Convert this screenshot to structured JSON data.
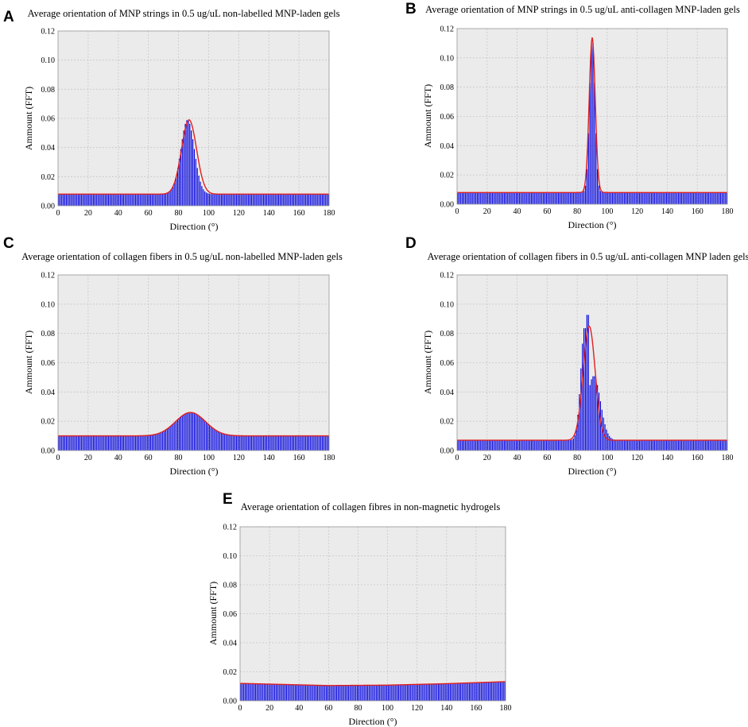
{
  "chart_data": [
    {
      "panel": "A",
      "type": "bar",
      "title": "Average orientation of MNP strings in 0.5 ug/uL non-labelled MNP-laden gels",
      "xlabel": "Direction (°)",
      "ylabel": "Ammount (FFT)",
      "xlim": [
        0,
        180
      ],
      "ylim": [
        0,
        0.12
      ],
      "xticks": [
        "0",
        "20",
        "40",
        "60",
        "80",
        "100",
        "120",
        "140",
        "160",
        "180"
      ],
      "yticks": [
        "0.00",
        "0.02",
        "0.04",
        "0.06",
        "0.08",
        "0.10",
        "0.12"
      ],
      "grid": true,
      "bar_color": "#0000e0",
      "fit_color": "#e02020",
      "bars": {
        "baseline": 0.008,
        "peaks": [
          [
            86,
            0.059,
            4.5
          ]
        ]
      },
      "fit": {
        "type": "gaussian",
        "baseline": 0.008,
        "peak": 0.059,
        "center": 87,
        "sigma": 5
      }
    },
    {
      "panel": "B",
      "type": "bar",
      "title": "Average orientation of MNP strings in 0.5 ug/uL anti-collagen MNP-laden gels",
      "xlabel": "Direction (°)",
      "ylabel": "Ammount (FFT)",
      "xlim": [
        0,
        180
      ],
      "ylim": [
        0,
        0.12
      ],
      "xticks": [
        "0",
        "20",
        "40",
        "60",
        "80",
        "100",
        "120",
        "140",
        "160",
        "180"
      ],
      "yticks": [
        "0.00",
        "0.02",
        "0.04",
        "0.06",
        "0.08",
        "0.10",
        "0.12"
      ],
      "grid": true,
      "bar_color": "#0000e0",
      "fit_color": "#e02020",
      "bars": {
        "baseline": 0.008,
        "peaks": [
          [
            90,
            0.114,
            1.8
          ]
        ]
      },
      "fit": {
        "type": "gaussian",
        "baseline": 0.008,
        "peak": 0.114,
        "center": 90,
        "sigma": 2
      }
    },
    {
      "panel": "C",
      "type": "bar",
      "title": "Average orientation of collagen fibers in 0.5 ug/uL non-labelled MNP-laden gels",
      "xlabel": "Direction (°)",
      "ylabel": "Ammount (FFT)",
      "xlim": [
        0,
        180
      ],
      "ylim": [
        0,
        0.12
      ],
      "xticks": [
        "0",
        "20",
        "40",
        "60",
        "80",
        "100",
        "120",
        "140",
        "160",
        "180"
      ],
      "yticks": [
        "0.00",
        "0.02",
        "0.04",
        "0.06",
        "0.08",
        "0.10",
        "0.12"
      ],
      "grid": true,
      "bar_color": "#0000e0",
      "fit_color": "#e02020",
      "bars": {
        "baseline": 0.01,
        "peaks": [
          [
            88,
            0.026,
            10
          ]
        ]
      },
      "fit": {
        "type": "gaussian",
        "baseline": 0.01,
        "peak": 0.026,
        "center": 88,
        "sigma": 10
      }
    },
    {
      "panel": "D",
      "type": "bar",
      "title": "Average orientation of collagen fibers in 0.5 ug/uL anti-collagen MNP laden gels",
      "xlabel": "Direction (°)",
      "ylabel": "Ammount (FFT)",
      "xlim": [
        0,
        180
      ],
      "ylim": [
        0,
        0.12
      ],
      "xticks": [
        "0",
        "20",
        "40",
        "60",
        "80",
        "100",
        "120",
        "140",
        "160",
        "180"
      ],
      "yticks": [
        "0.00",
        "0.02",
        "0.04",
        "0.06",
        "0.08",
        "0.10",
        "0.12"
      ],
      "grid": true,
      "bar_color": "#0000e0",
      "fit_color": "#e02020",
      "bars": {
        "baseline": 0.007,
        "peaks": [
          [
            87,
            0.107,
            0.9
          ],
          [
            85,
            0.085,
            2.6
          ],
          [
            91,
            0.051,
            4.5
          ]
        ]
      },
      "fit": {
        "type": "gaussian",
        "baseline": 0.007,
        "peak": 0.085,
        "center": 88,
        "sigma": 4
      }
    },
    {
      "panel": "E",
      "type": "bar",
      "title": "Average orientation of collagen fibres in non-magnetic hydrogels",
      "xlabel": "Direction (°)",
      "ylabel": "Ammount (FFT)",
      "xlim": [
        0,
        180
      ],
      "ylim": [
        0,
        0.12
      ],
      "xticks": [
        "0",
        "20",
        "40",
        "60",
        "80",
        "100",
        "120",
        "140",
        "160",
        "180"
      ],
      "yticks": [
        "0.00",
        "0.02",
        "0.04",
        "0.06",
        "0.08",
        "0.10",
        "0.12"
      ],
      "grid": true,
      "bar_color": "#0000e0",
      "fit_color": "#e02020",
      "bars": {
        "baseline_curve": [
          [
            0,
            0.012
          ],
          [
            60,
            0.0105
          ],
          [
            100,
            0.0108
          ],
          [
            140,
            0.0118
          ],
          [
            180,
            0.0132
          ]
        ],
        "peaks": []
      },
      "fit": {
        "type": "curve",
        "points": [
          [
            0,
            0.012
          ],
          [
            60,
            0.0105
          ],
          [
            100,
            0.0108
          ],
          [
            140,
            0.0118
          ],
          [
            180,
            0.0132
          ]
        ]
      }
    }
  ]
}
